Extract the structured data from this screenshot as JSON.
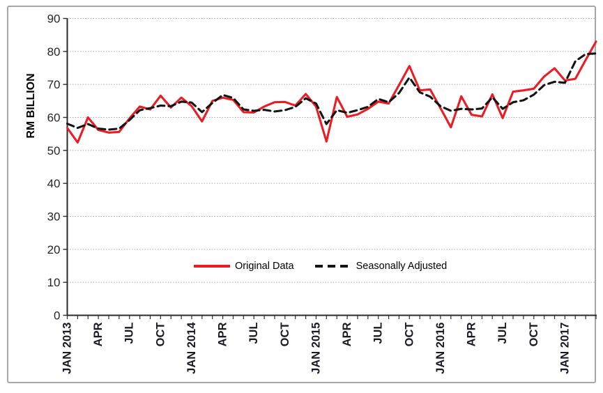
{
  "figure": {
    "background": "#ffffff",
    "frame_border_color": "#a6a6a6",
    "axis_color": "#2b2b2b",
    "gridline_color": "#a8a8a8",
    "tick_label_color": "#262626",
    "x_label_color": "#1a1a24"
  },
  "y_axis": {
    "label": "RM BILLION",
    "ticks": [
      0,
      10,
      20,
      30,
      40,
      50,
      60,
      70,
      80,
      90
    ],
    "min": 0,
    "max": 90
  },
  "x_axis": {
    "tick_labels": [
      "JAN 2013",
      "APR",
      "JUL",
      "OCT",
      "JAN 2014",
      "APR",
      "JUL",
      "OCT",
      "JAN 2015",
      "APR",
      "JUL",
      "OCT",
      "JAN 2016",
      "APR",
      "JUL",
      "OCT",
      "JAN 2017"
    ],
    "label_every_n_months": 3
  },
  "legend": {
    "items": [
      {
        "label": "Original Data",
        "color": "#ed1b24",
        "style": "solid"
      },
      {
        "label": "Seasonally Adjusted",
        "color": "#141414",
        "style": "dashed"
      }
    ]
  },
  "chart_data": {
    "type": "line",
    "title": "",
    "xlabel": "",
    "ylabel": "RM BILLION",
    "ylim": [
      0,
      90
    ],
    "grid": "horizontal-dotted",
    "legend_position": "inside-lower-center",
    "x": [
      "JAN 2013",
      "FEB 2013",
      "MAR 2013",
      "APR 2013",
      "MAY 2013",
      "JUN 2013",
      "JUL 2013",
      "AUG 2013",
      "SEP 2013",
      "OCT 2013",
      "NOV 2013",
      "DEC 2013",
      "JAN 2014",
      "FEB 2014",
      "MAR 2014",
      "APR 2014",
      "MAY 2014",
      "JUN 2014",
      "JUL 2014",
      "AUG 2014",
      "SEP 2014",
      "OCT 2014",
      "NOV 2014",
      "DEC 2014",
      "JAN 2015",
      "FEB 2015",
      "MAR 2015",
      "APR 2015",
      "MAY 2015",
      "JUN 2015",
      "JUL 2015",
      "AUG 2015",
      "SEP 2015",
      "OCT 2015",
      "NOV 2015",
      "DEC 2015",
      "JAN 2016",
      "FEB 2016",
      "MAR 2016",
      "APR 2016",
      "MAY 2016",
      "JUN 2016",
      "JUL 2016",
      "AUG 2016",
      "SEP 2016",
      "OCT 2016",
      "NOV 2016",
      "DEC 2016",
      "JAN 2017",
      "FEB 2017",
      "MAR 2017",
      "APR 2017"
    ],
    "series": [
      {
        "name": "Original Data",
        "color": "#ed1b24",
        "style": "solid",
        "values": [
          56.8,
          52.4,
          60.0,
          56.2,
          55.4,
          55.6,
          59.7,
          63.3,
          62.4,
          66.6,
          63.0,
          66.0,
          63.4,
          58.8,
          65.0,
          66.0,
          65.3,
          61.6,
          61.5,
          63.3,
          64.6,
          64.7,
          63.6,
          67.1,
          63.3,
          52.7,
          66.2,
          60.2,
          60.9,
          62.6,
          64.8,
          64.2,
          69.8,
          75.6,
          68.2,
          68.5,
          62.8,
          57.0,
          66.4,
          60.8,
          60.3,
          67.0,
          59.8,
          67.8,
          68.2,
          68.7,
          72.4,
          74.9,
          71.2,
          71.7,
          77.4,
          83.0
        ]
      },
      {
        "name": "Seasonally Adjusted",
        "color": "#141414",
        "style": "dashed",
        "values": [
          58.1,
          56.8,
          58.0,
          56.6,
          56.3,
          56.6,
          59.2,
          62.2,
          62.8,
          63.6,
          63.4,
          64.8,
          64.5,
          61.6,
          64.4,
          66.8,
          65.9,
          62.4,
          62.0,
          62.3,
          61.8,
          62.2,
          63.2,
          65.8,
          64.2,
          58.0,
          62.2,
          61.4,
          62.2,
          63.2,
          65.6,
          64.6,
          67.4,
          72.1,
          67.6,
          66.3,
          63.4,
          62.0,
          62.6,
          62.4,
          62.7,
          66.1,
          62.6,
          64.6,
          65.2,
          66.9,
          69.8,
          70.8,
          70.5,
          77.0,
          79.2,
          79.4
        ]
      }
    ]
  }
}
